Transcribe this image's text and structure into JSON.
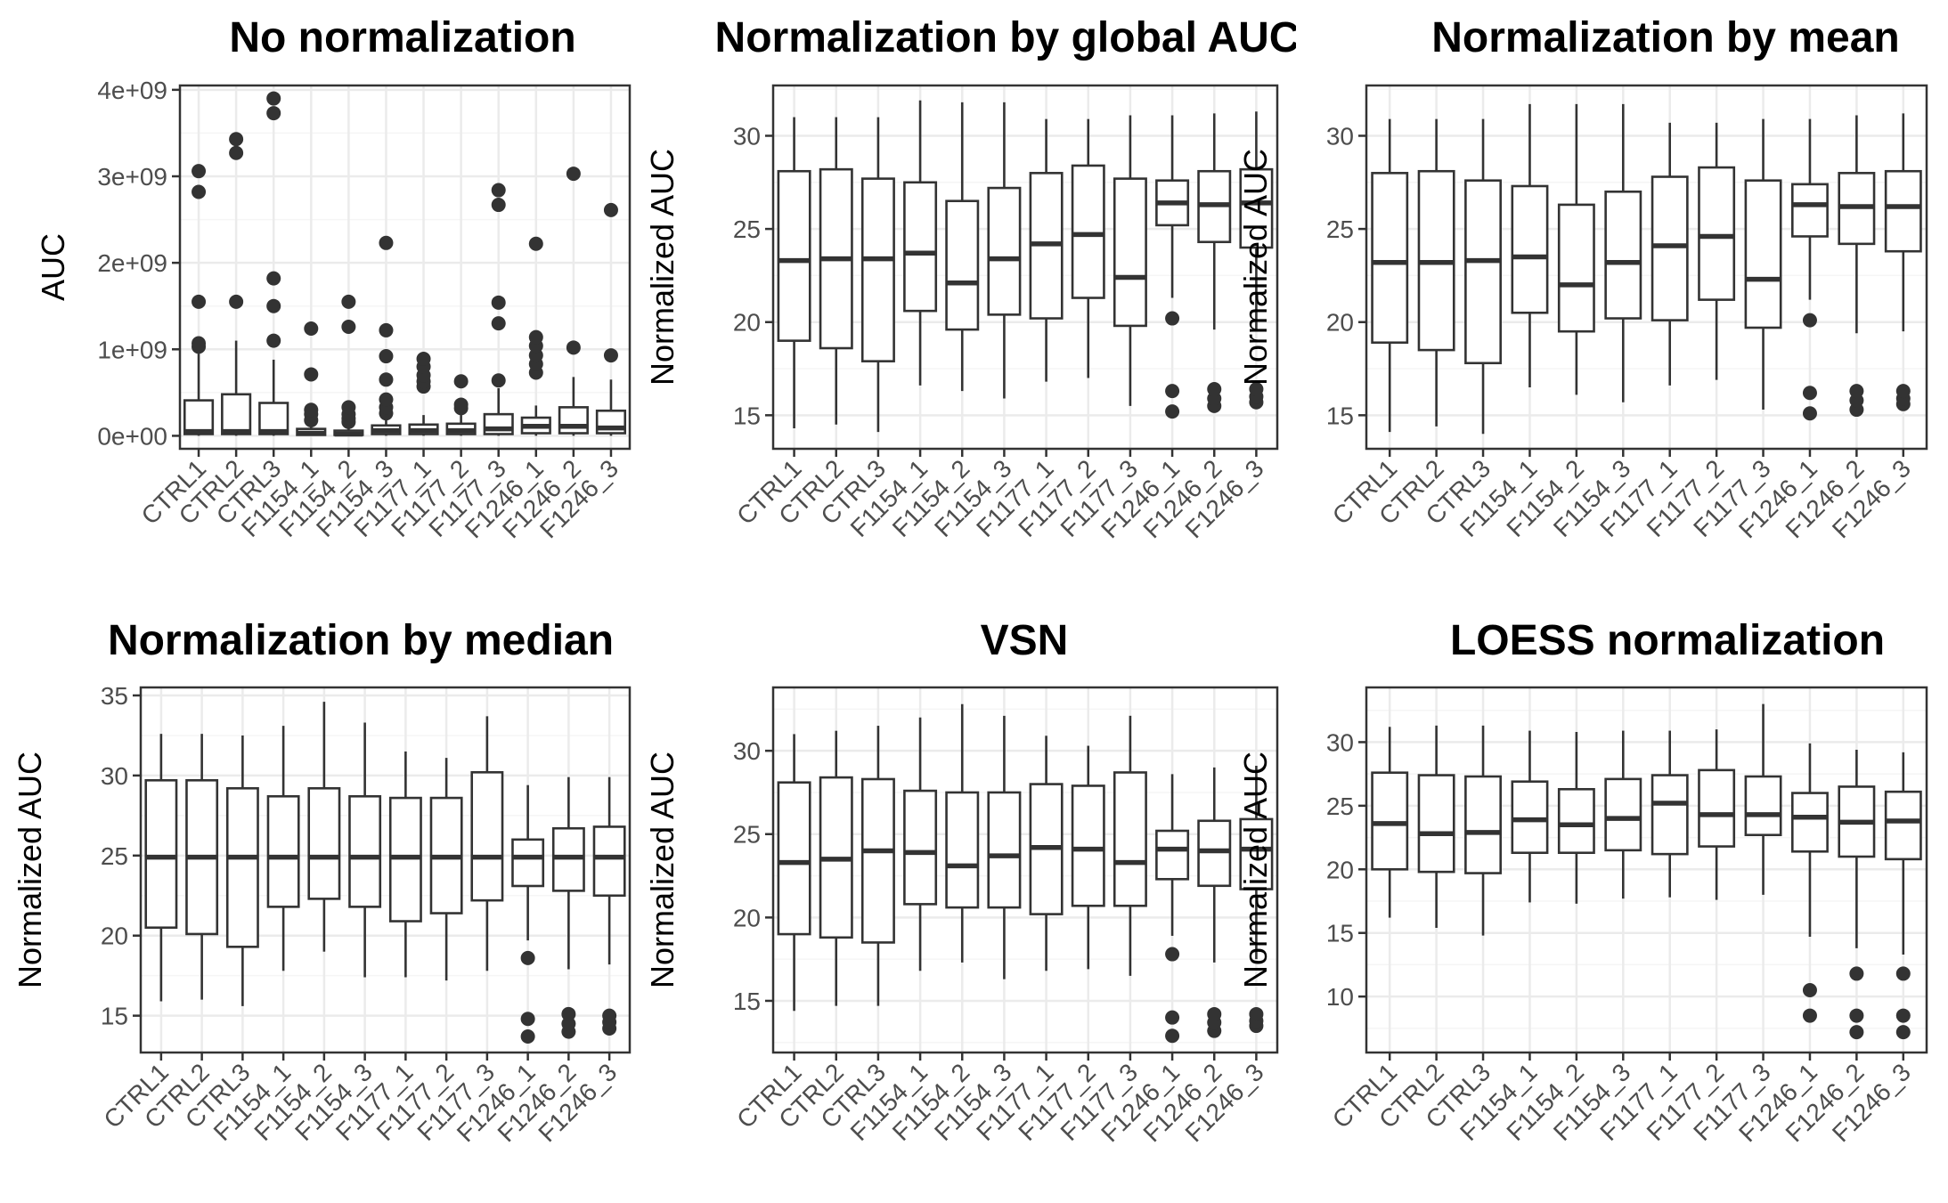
{
  "chart_data": [
    {
      "type": "box",
      "title": "No normalization",
      "ylabel": "AUC",
      "categories": [
        "CTRL1",
        "CTRL2",
        "CTRL3",
        "F1154_1",
        "F1154_2",
        "F1154_3",
        "F1177_1",
        "F1177_2",
        "F1177_3",
        "F1246_1",
        "F1246_2",
        "F1246_3"
      ],
      "ylim": [
        -150000000.0,
        4050000000.0
      ],
      "yticks": [
        0,
        1000000000.0,
        2000000000.0,
        3000000000.0,
        4000000000.0
      ],
      "ytick_labels": [
        "0e+00",
        "1e+09",
        "2e+09",
        "3e+09",
        "4e+09"
      ],
      "grid": true,
      "boxes": [
        {
          "q1": 20000000.0,
          "median": 50000000.0,
          "q3": 410000000.0,
          "whisker_low": 0,
          "whisker_high": 950000000.0,
          "outliers": [
            1030000000.0,
            1070000000.0,
            1550000000.0,
            2820000000.0,
            3060000000.0
          ]
        },
        {
          "q1": 20000000.0,
          "median": 50000000.0,
          "q3": 480000000.0,
          "whisker_low": 0,
          "whisker_high": 1100000000.0,
          "outliers": [
            1550000000.0,
            3270000000.0,
            3430000000.0
          ]
        },
        {
          "q1": 20000000.0,
          "median": 50000000.0,
          "q3": 380000000.0,
          "whisker_low": 0,
          "whisker_high": 880000000.0,
          "outliers": [
            1100000000.0,
            1500000000.0,
            1820000000.0,
            3730000000.0,
            3900000000.0
          ]
        },
        {
          "q1": 10000000.0,
          "median": 30000000.0,
          "q3": 80000000.0,
          "whisker_low": 0,
          "whisker_high": 150000000.0,
          "outliers": [
            180000000.0,
            250000000.0,
            300000000.0,
            710000000.0,
            1240000000.0
          ]
        },
        {
          "q1": 10000000.0,
          "median": 20000000.0,
          "q3": 60000000.0,
          "whisker_low": 0,
          "whisker_high": 130000000.0,
          "outliers": [
            160000000.0,
            200000000.0,
            250000000.0,
            330000000.0,
            1260000000.0,
            1550000000.0
          ]
        },
        {
          "q1": 20000000.0,
          "median": 60000000.0,
          "q3": 120000000.0,
          "whisker_low": 0,
          "whisker_high": 210000000.0,
          "outliers": [
            260000000.0,
            330000000.0,
            420000000.0,
            650000000.0,
            920000000.0,
            1220000000.0,
            2230000000.0
          ]
        },
        {
          "q1": 20000000.0,
          "median": 60000000.0,
          "q3": 130000000.0,
          "whisker_low": 0,
          "whisker_high": 240000000.0,
          "outliers": [
            570000000.0,
            630000000.0,
            700000000.0,
            800000000.0,
            890000000.0
          ]
        },
        {
          "q1": 20000000.0,
          "median": 60000000.0,
          "q3": 140000000.0,
          "whisker_low": 0,
          "whisker_high": 240000000.0,
          "outliers": [
            320000000.0,
            360000000.0,
            630000000.0
          ]
        },
        {
          "q1": 20000000.0,
          "median": 80000000.0,
          "q3": 250000000.0,
          "whisker_low": 0,
          "whisker_high": 550000000.0,
          "outliers": [
            640000000.0,
            1300000000.0,
            1540000000.0,
            2670000000.0,
            2840000000.0
          ]
        },
        {
          "q1": 30000000.0,
          "median": 110000000.0,
          "q3": 210000000.0,
          "whisker_low": 0,
          "whisker_high": 350000000.0,
          "outliers": [
            730000000.0,
            830000000.0,
            930000000.0,
            1040000000.0,
            1140000000.0,
            2220000000.0
          ]
        },
        {
          "q1": 30000000.0,
          "median": 110000000.0,
          "q3": 330000000.0,
          "whisker_low": 0,
          "whisker_high": 680000000.0,
          "outliers": [
            1020000000.0,
            3030000000.0
          ]
        },
        {
          "q1": 30000000.0,
          "median": 90000000.0,
          "q3": 290000000.0,
          "whisker_low": 0,
          "whisker_high": 650000000.0,
          "outliers": [
            930000000.0,
            2610000000.0
          ]
        }
      ]
    },
    {
      "type": "box",
      "title": "Normalization by global AUC",
      "ylabel": "Normalized AUC",
      "categories": [
        "CTRL1",
        "CTRL2",
        "CTRL3",
        "F1154_1",
        "F1154_2",
        "F1154_3",
        "F1177_1",
        "F1177_2",
        "F1177_3",
        "F1246_1",
        "F1246_2",
        "F1246_3"
      ],
      "ylim": [
        13.2,
        32.7
      ],
      "yticks": [
        15,
        20,
        25,
        30
      ],
      "ytick_labels": [
        "15",
        "20",
        "25",
        "30"
      ],
      "grid": true,
      "boxes": [
        {
          "q1": 19.0,
          "median": 23.3,
          "q3": 28.1,
          "whisker_low": 14.3,
          "whisker_high": 31.0,
          "outliers": []
        },
        {
          "q1": 18.6,
          "median": 23.4,
          "q3": 28.2,
          "whisker_low": 14.5,
          "whisker_high": 31.0,
          "outliers": []
        },
        {
          "q1": 17.9,
          "median": 23.4,
          "q3": 27.7,
          "whisker_low": 14.1,
          "whisker_high": 31.0,
          "outliers": []
        },
        {
          "q1": 20.6,
          "median": 23.7,
          "q3": 27.5,
          "whisker_low": 16.6,
          "whisker_high": 31.9,
          "outliers": []
        },
        {
          "q1": 19.6,
          "median": 22.1,
          "q3": 26.5,
          "whisker_low": 16.3,
          "whisker_high": 31.8,
          "outliers": []
        },
        {
          "q1": 20.4,
          "median": 23.4,
          "q3": 27.2,
          "whisker_low": 15.9,
          "whisker_high": 31.8,
          "outliers": []
        },
        {
          "q1": 20.2,
          "median": 24.2,
          "q3": 28.0,
          "whisker_low": 16.8,
          "whisker_high": 30.9,
          "outliers": []
        },
        {
          "q1": 21.3,
          "median": 24.7,
          "q3": 28.4,
          "whisker_low": 17.0,
          "whisker_high": 30.9,
          "outliers": []
        },
        {
          "q1": 19.8,
          "median": 22.4,
          "q3": 27.7,
          "whisker_low": 15.5,
          "whisker_high": 31.1,
          "outliers": []
        },
        {
          "q1": 25.2,
          "median": 26.4,
          "q3": 27.6,
          "whisker_low": 21.3,
          "whisker_high": 31.1,
          "outliers": [
            15.2,
            16.3,
            20.2
          ]
        },
        {
          "q1": 24.3,
          "median": 26.3,
          "q3": 28.1,
          "whisker_low": 19.6,
          "whisker_high": 31.2,
          "outliers": [
            15.5,
            15.9,
            16.4
          ]
        },
        {
          "q1": 24.0,
          "median": 26.4,
          "q3": 28.2,
          "whisker_low": 19.6,
          "whisker_high": 31.3,
          "outliers": [
            15.7,
            16.0,
            16.4
          ]
        }
      ]
    },
    {
      "type": "box",
      "title": "Normalization by mean",
      "ylabel": "Normalized AUC",
      "categories": [
        "CTRL1",
        "CTRL2",
        "CTRL3",
        "F1154_1",
        "F1154_2",
        "F1154_3",
        "F1177_1",
        "F1177_2",
        "F1177_3",
        "F1246_1",
        "F1246_2",
        "F1246_3"
      ],
      "ylim": [
        13.2,
        32.7
      ],
      "yticks": [
        15,
        20,
        25,
        30
      ],
      "ytick_labels": [
        "15",
        "20",
        "25",
        "30"
      ],
      "grid": true,
      "boxes": [
        {
          "q1": 18.9,
          "median": 23.2,
          "q3": 28.0,
          "whisker_low": 14.1,
          "whisker_high": 30.9,
          "outliers": []
        },
        {
          "q1": 18.5,
          "median": 23.2,
          "q3": 28.1,
          "whisker_low": 14.4,
          "whisker_high": 30.9,
          "outliers": []
        },
        {
          "q1": 17.8,
          "median": 23.3,
          "q3": 27.6,
          "whisker_low": 14.0,
          "whisker_high": 30.9,
          "outliers": []
        },
        {
          "q1": 20.5,
          "median": 23.5,
          "q3": 27.3,
          "whisker_low": 16.5,
          "whisker_high": 31.7,
          "outliers": []
        },
        {
          "q1": 19.5,
          "median": 22.0,
          "q3": 26.3,
          "whisker_low": 16.1,
          "whisker_high": 31.7,
          "outliers": []
        },
        {
          "q1": 20.2,
          "median": 23.2,
          "q3": 27.0,
          "whisker_low": 15.7,
          "whisker_high": 31.7,
          "outliers": []
        },
        {
          "q1": 20.1,
          "median": 24.1,
          "q3": 27.8,
          "whisker_low": 16.6,
          "whisker_high": 30.7,
          "outliers": []
        },
        {
          "q1": 21.2,
          "median": 24.6,
          "q3": 28.3,
          "whisker_low": 16.9,
          "whisker_high": 30.7,
          "outliers": []
        },
        {
          "q1": 19.7,
          "median": 22.3,
          "q3": 27.6,
          "whisker_low": 15.3,
          "whisker_high": 30.9,
          "outliers": []
        },
        {
          "q1": 24.6,
          "median": 26.3,
          "q3": 27.4,
          "whisker_low": 21.2,
          "whisker_high": 30.9,
          "outliers": [
            15.1,
            16.2,
            20.1
          ]
        },
        {
          "q1": 24.2,
          "median": 26.2,
          "q3": 28.0,
          "whisker_low": 19.4,
          "whisker_high": 31.1,
          "outliers": [
            15.3,
            15.8,
            16.3
          ]
        },
        {
          "q1": 23.8,
          "median": 26.2,
          "q3": 28.1,
          "whisker_low": 19.5,
          "whisker_high": 31.2,
          "outliers": [
            15.6,
            15.9,
            16.3
          ]
        }
      ]
    },
    {
      "type": "box",
      "title": "Normalization by median",
      "ylabel": "Normalized AUC",
      "categories": [
        "CTRL1",
        "CTRL2",
        "CTRL3",
        "F1154_1",
        "F1154_2",
        "F1154_3",
        "F1177_1",
        "F1177_2",
        "F1177_3",
        "F1246_1",
        "F1246_2",
        "F1246_3"
      ],
      "ylim": [
        12.7,
        35.5
      ],
      "yticks": [
        15,
        20,
        25,
        30,
        35
      ],
      "ytick_labels": [
        "15",
        "20",
        "25",
        "30",
        "35"
      ],
      "grid": true,
      "boxes": [
        {
          "q1": 20.5,
          "median": 24.9,
          "q3": 29.7,
          "whisker_low": 15.9,
          "whisker_high": 32.6,
          "outliers": []
        },
        {
          "q1": 20.1,
          "median": 24.9,
          "q3": 29.7,
          "whisker_low": 16.0,
          "whisker_high": 32.6,
          "outliers": []
        },
        {
          "q1": 19.3,
          "median": 24.9,
          "q3": 29.2,
          "whisker_low": 15.6,
          "whisker_high": 32.5,
          "outliers": []
        },
        {
          "q1": 21.8,
          "median": 24.9,
          "q3": 28.7,
          "whisker_low": 17.8,
          "whisker_high": 33.1,
          "outliers": []
        },
        {
          "q1": 22.3,
          "median": 24.9,
          "q3": 29.2,
          "whisker_low": 19.0,
          "whisker_high": 34.6,
          "outliers": []
        },
        {
          "q1": 21.8,
          "median": 24.9,
          "q3": 28.7,
          "whisker_low": 17.4,
          "whisker_high": 33.3,
          "outliers": []
        },
        {
          "q1": 20.9,
          "median": 24.9,
          "q3": 28.6,
          "whisker_low": 17.4,
          "whisker_high": 31.5,
          "outliers": []
        },
        {
          "q1": 21.4,
          "median": 24.9,
          "q3": 28.6,
          "whisker_low": 17.2,
          "whisker_high": 31.1,
          "outliers": []
        },
        {
          "q1": 22.2,
          "median": 24.9,
          "q3": 30.2,
          "whisker_low": 17.8,
          "whisker_high": 33.7,
          "outliers": []
        },
        {
          "q1": 23.1,
          "median": 24.9,
          "q3": 26.0,
          "whisker_low": 19.7,
          "whisker_high": 29.4,
          "outliers": [
            13.7,
            14.8,
            18.6
          ]
        },
        {
          "q1": 22.8,
          "median": 24.9,
          "q3": 26.7,
          "whisker_low": 17.9,
          "whisker_high": 29.9,
          "outliers": [
            14.0,
            14.5,
            15.1
          ]
        },
        {
          "q1": 22.5,
          "median": 24.9,
          "q3": 26.8,
          "whisker_low": 18.2,
          "whisker_high": 29.9,
          "outliers": [
            14.2,
            14.6,
            15.0
          ]
        }
      ]
    },
    {
      "type": "box",
      "title": "VSN",
      "ylabel": "Normalized AUC",
      "categories": [
        "CTRL1",
        "CTRL2",
        "CTRL3",
        "F1154_1",
        "F1154_2",
        "F1154_3",
        "F1177_1",
        "F1177_2",
        "F1177_3",
        "F1246_1",
        "F1246_2",
        "F1246_3"
      ],
      "ylim": [
        11.9,
        33.8
      ],
      "yticks": [
        15,
        20,
        25,
        30
      ],
      "ytick_labels": [
        "15",
        "20",
        "25",
        "30"
      ],
      "grid": true,
      "boxes": [
        {
          "q1": 19.0,
          "median": 23.3,
          "q3": 28.1,
          "whisker_low": 14.4,
          "whisker_high": 31.0,
          "outliers": []
        },
        {
          "q1": 18.8,
          "median": 23.5,
          "q3": 28.4,
          "whisker_low": 14.7,
          "whisker_high": 31.2,
          "outliers": []
        },
        {
          "q1": 18.5,
          "median": 24.0,
          "q3": 28.3,
          "whisker_low": 14.7,
          "whisker_high": 31.5,
          "outliers": []
        },
        {
          "q1": 20.8,
          "median": 23.9,
          "q3": 27.6,
          "whisker_low": 16.8,
          "whisker_high": 32.0,
          "outliers": []
        },
        {
          "q1": 20.6,
          "median": 23.1,
          "q3": 27.5,
          "whisker_low": 17.3,
          "whisker_high": 32.8,
          "outliers": []
        },
        {
          "q1": 20.6,
          "median": 23.7,
          "q3": 27.5,
          "whisker_low": 16.3,
          "whisker_high": 32.1,
          "outliers": []
        },
        {
          "q1": 20.2,
          "median": 24.2,
          "q3": 28.0,
          "whisker_low": 16.8,
          "whisker_high": 30.9,
          "outliers": []
        },
        {
          "q1": 20.7,
          "median": 24.1,
          "q3": 27.9,
          "whisker_low": 16.9,
          "whisker_high": 30.3,
          "outliers": []
        },
        {
          "q1": 20.7,
          "median": 23.3,
          "q3": 28.7,
          "whisker_low": 16.5,
          "whisker_high": 32.1,
          "outliers": []
        },
        {
          "q1": 22.3,
          "median": 24.1,
          "q3": 25.2,
          "whisker_low": 18.9,
          "whisker_high": 28.6,
          "outliers": [
            12.9,
            14.0,
            17.8
          ]
        },
        {
          "q1": 21.9,
          "median": 24.0,
          "q3": 25.8,
          "whisker_low": 17.3,
          "whisker_high": 29.0,
          "outliers": [
            13.2,
            13.7,
            14.2
          ]
        },
        {
          "q1": 21.7,
          "median": 24.1,
          "q3": 25.9,
          "whisker_low": 17.5,
          "whisker_high": 29.1,
          "outliers": [
            13.5,
            13.8,
            14.2
          ]
        }
      ]
    },
    {
      "type": "box",
      "title": "LOESS normalization",
      "ylabel": "Normalized AUC",
      "categories": [
        "CTRL1",
        "CTRL2",
        "CTRL3",
        "F1154_1",
        "F1154_2",
        "F1154_3",
        "F1177_1",
        "F1177_2",
        "F1177_3",
        "F1246_1",
        "F1246_2",
        "F1246_3"
      ],
      "ylim": [
        5.6,
        34.3
      ],
      "yticks": [
        10,
        15,
        20,
        25,
        30
      ],
      "ytick_labels": [
        "10",
        "15",
        "20",
        "25",
        "30"
      ],
      "grid": true,
      "boxes": [
        {
          "q1": 20.0,
          "median": 23.6,
          "q3": 27.6,
          "whisker_low": 16.2,
          "whisker_high": 31.2,
          "outliers": []
        },
        {
          "q1": 19.8,
          "median": 22.8,
          "q3": 27.4,
          "whisker_low": 15.4,
          "whisker_high": 31.3,
          "outliers": []
        },
        {
          "q1": 19.7,
          "median": 22.9,
          "q3": 27.3,
          "whisker_low": 14.8,
          "whisker_high": 31.3,
          "outliers": []
        },
        {
          "q1": 21.3,
          "median": 23.9,
          "q3": 26.9,
          "whisker_low": 17.4,
          "whisker_high": 30.9,
          "outliers": []
        },
        {
          "q1": 21.3,
          "median": 23.5,
          "q3": 26.3,
          "whisker_low": 17.3,
          "whisker_high": 30.8,
          "outliers": []
        },
        {
          "q1": 21.5,
          "median": 24.0,
          "q3": 27.1,
          "whisker_low": 17.7,
          "whisker_high": 30.9,
          "outliers": []
        },
        {
          "q1": 21.2,
          "median": 25.2,
          "q3": 27.4,
          "whisker_low": 17.8,
          "whisker_high": 30.9,
          "outliers": []
        },
        {
          "q1": 21.8,
          "median": 24.3,
          "q3": 27.8,
          "whisker_low": 17.6,
          "whisker_high": 31.0,
          "outliers": []
        },
        {
          "q1": 22.7,
          "median": 24.3,
          "q3": 27.3,
          "whisker_low": 18.0,
          "whisker_high": 33.0,
          "outliers": []
        },
        {
          "q1": 21.4,
          "median": 24.1,
          "q3": 26.0,
          "whisker_low": 14.7,
          "whisker_high": 29.9,
          "outliers": [
            8.5,
            10.5
          ]
        },
        {
          "q1": 21.0,
          "median": 23.7,
          "q3": 26.5,
          "whisker_low": 13.8,
          "whisker_high": 29.4,
          "outliers": [
            7.2,
            8.5,
            11.8
          ]
        },
        {
          "q1": 20.8,
          "median": 23.8,
          "q3": 26.1,
          "whisker_low": 13.3,
          "whisker_high": 29.2,
          "outliers": [
            7.2,
            8.5,
            11.8
          ]
        }
      ]
    }
  ],
  "colors": {
    "box_fill": "#ffffff",
    "line": "#333333",
    "panel_border": "#333333",
    "grid_major": "#ebebeb",
    "grid_minor": "#f5f5f5",
    "tick_text": "#4d4d4d",
    "title_text": "#000000"
  }
}
